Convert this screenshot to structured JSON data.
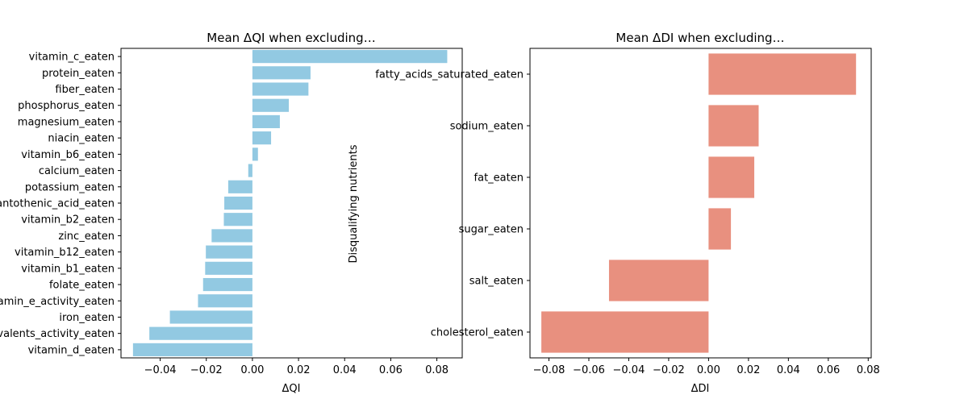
{
  "chart_data": [
    {
      "type": "bar",
      "orientation": "horizontal",
      "title": "Mean ΔQI when excluding…",
      "xlabel": "ΔQI",
      "ylabel": "",
      "xlim": [
        -0.057,
        0.091
      ],
      "xticks": [
        -0.04,
        -0.02,
        0.0,
        0.02,
        0.04,
        0.06,
        0.08
      ],
      "xtick_labels": [
        "−0.04",
        "−0.02",
        "0.00",
        "0.02",
        "0.04",
        "0.06",
        "0.08"
      ],
      "color": "#92c9e2",
      "categories": [
        "vitamin_c_eaten",
        "protein_eaten",
        "fiber_eaten",
        "phosphorus_eaten",
        "magnesium_eaten",
        "niacin_eaten",
        "vitamin_b6_eaten",
        "calcium_eaten",
        "potassium_eaten",
        "pantothenic_acid_eaten",
        "vitamin_b2_eaten",
        "zinc_eaten",
        "vitamin_b12_eaten",
        "vitamin_b1_eaten",
        "folate_eaten",
        "vitamin_e_activity_eaten",
        "iron_eaten",
        "vitamin_a_equivalents_activity_eaten",
        "vitamin_d_eaten"
      ],
      "values": [
        0.0845,
        0.0252,
        0.0243,
        0.0158,
        0.0119,
        0.0081,
        0.0024,
        -0.0018,
        -0.0105,
        -0.0122,
        -0.0124,
        -0.0177,
        -0.0202,
        -0.0205,
        -0.0214,
        -0.0236,
        -0.0358,
        -0.0447,
        -0.0518
      ],
      "annotation": "Disqualifying nutrients"
    },
    {
      "type": "bar",
      "orientation": "horizontal",
      "title": "Mean ΔDI when excluding…",
      "xlabel": "ΔDI",
      "ylabel": "",
      "xlim": [
        -0.0895,
        0.0815
      ],
      "xticks": [
        -0.08,
        -0.06,
        -0.04,
        -0.02,
        0.0,
        0.02,
        0.04,
        0.06,
        0.08
      ],
      "xtick_labels": [
        "−0.08",
        "−0.06",
        "−0.04",
        "−0.02",
        "0.00",
        "0.02",
        "0.04",
        "0.06",
        "0.08"
      ],
      "color": "#e8907f",
      "categories": [
        "fatty_acids_saturated_eaten",
        "sodium_eaten",
        "fat_eaten",
        "sugar_eaten",
        "salt_eaten",
        "cholesterol_eaten"
      ],
      "values": [
        0.0739,
        0.0251,
        0.0229,
        0.0112,
        -0.0499,
        -0.0838
      ]
    }
  ]
}
